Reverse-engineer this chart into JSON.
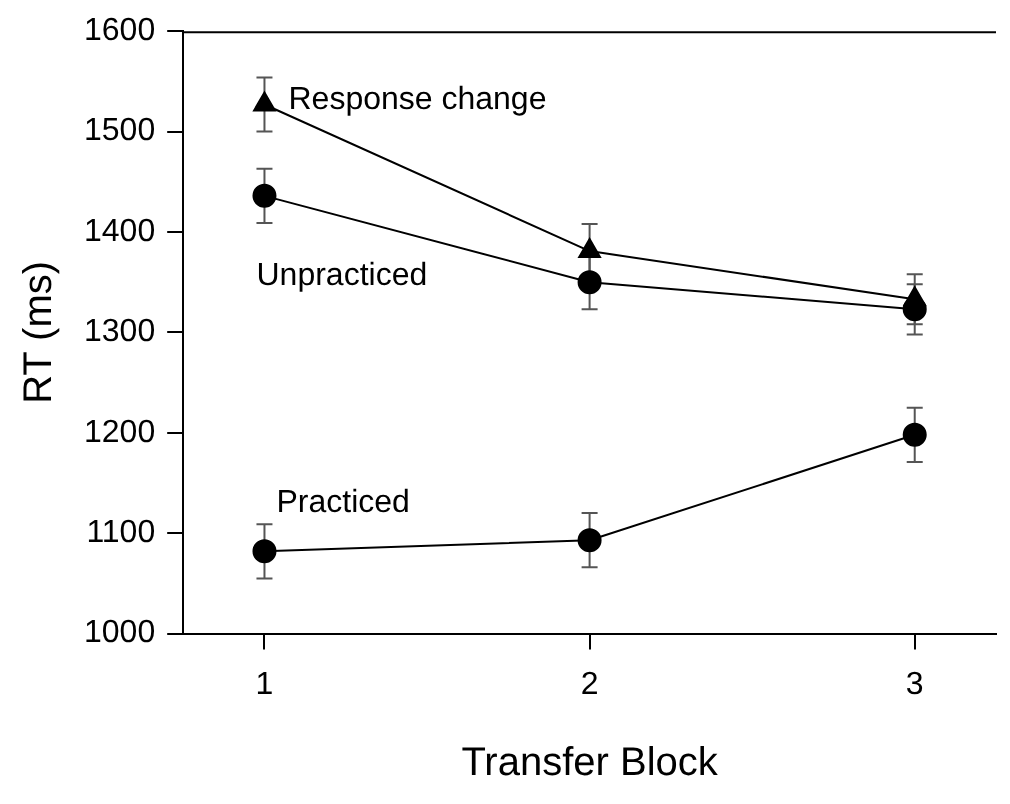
{
  "chart_data": {
    "type": "line",
    "xlabel": "Transfer Block",
    "ylabel": "RT (ms)",
    "x": [
      1,
      2,
      3
    ],
    "xlim": [
      0.75,
      3.25
    ],
    "xticks": [
      1,
      2,
      3
    ],
    "ylim": [
      1000,
      1600
    ],
    "yticks": [
      1000,
      1100,
      1200,
      1300,
      1400,
      1500,
      1600
    ],
    "grid": false,
    "legend": false,
    "line_style": "solid",
    "series": [
      {
        "name": "Response change",
        "color": "#000000",
        "marker": "triangle",
        "values": [
          1527,
          1381,
          1333
        ],
        "errors": [
          27,
          27,
          25
        ]
      },
      {
        "name": "Unpracticed",
        "color": "#000000",
        "marker": "circle",
        "values": [
          1436,
          1350,
          1323
        ],
        "errors": [
          27,
          27,
          25
        ]
      },
      {
        "name": "Practiced",
        "color": "#000000",
        "marker": "circle",
        "values": [
          1082,
          1093,
          1198
        ],
        "errors": [
          27,
          27,
          27
        ]
      }
    ]
  }
}
